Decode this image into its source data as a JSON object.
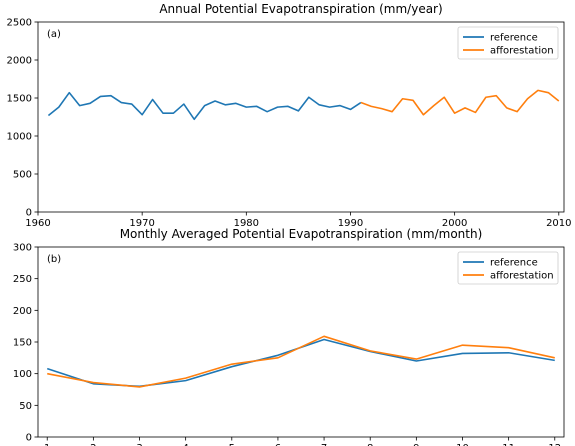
{
  "chart_data": [
    {
      "type": "line",
      "panel_label": "(a)",
      "title": "Annual Potential Evapotranspiration (mm/year)",
      "xlabel": "",
      "ylabel": "",
      "xlim": [
        1960,
        2010.5
      ],
      "ylim": [
        0,
        2500
      ],
      "xticks": [
        1960,
        1970,
        1980,
        1990,
        2000,
        2010
      ],
      "yticks": [
        0,
        500,
        1000,
        1500,
        2000,
        2500
      ],
      "legend": "top-right",
      "series": [
        {
          "name": "reference",
          "color": "#1f77b4",
          "x": [
            1961,
            1962,
            1963,
            1964,
            1965,
            1966,
            1967,
            1968,
            1969,
            1970,
            1971,
            1972,
            1973,
            1974,
            1975,
            1976,
            1977,
            1978,
            1979,
            1980,
            1981,
            1982,
            1983,
            1984,
            1985,
            1986,
            1987,
            1988,
            1989,
            1990,
            1991
          ],
          "y": [
            1270,
            1380,
            1570,
            1400,
            1430,
            1520,
            1530,
            1440,
            1420,
            1280,
            1480,
            1300,
            1300,
            1420,
            1220,
            1400,
            1460,
            1410,
            1430,
            1380,
            1390,
            1320,
            1380,
            1390,
            1330,
            1510,
            1410,
            1380,
            1400,
            1350,
            1440
          ]
        },
        {
          "name": "afforestation",
          "color": "#ff7f0e",
          "x": [
            1991,
            1992,
            1993,
            1994,
            1995,
            1996,
            1997,
            1998,
            1999,
            2000,
            2001,
            2002,
            2003,
            2004,
            2005,
            2006,
            2007,
            2008,
            2009,
            2010
          ],
          "y": [
            1440,
            1390,
            1360,
            1320,
            1490,
            1470,
            1280,
            1400,
            1510,
            1300,
            1370,
            1310,
            1510,
            1530,
            1370,
            1320,
            1490,
            1600,
            1570,
            1460
          ]
        }
      ]
    },
    {
      "type": "line",
      "panel_label": "(b)",
      "title": "Monthly Averaged Potential Evapotranspiration (mm/month)",
      "xlabel": "",
      "ylabel": "",
      "xlim": [
        0.8,
        12.2
      ],
      "ylim": [
        0,
        300
      ],
      "xticks": [
        1,
        2,
        3,
        4,
        5,
        6,
        7,
        8,
        9,
        10,
        11,
        12
      ],
      "yticks": [
        0,
        50,
        100,
        150,
        200,
        250,
        300
      ],
      "legend": "top-right",
      "series": [
        {
          "name": "reference",
          "color": "#1f77b4",
          "x": [
            1,
            2,
            3,
            4,
            5,
            6,
            7,
            8,
            9,
            10,
            11,
            12
          ],
          "y": [
            108,
            84,
            80,
            89,
            111,
            129,
            154,
            135,
            120,
            132,
            133,
            121
          ]
        },
        {
          "name": "afforestation",
          "color": "#ff7f0e",
          "x": [
            1,
            2,
            3,
            4,
            5,
            6,
            7,
            8,
            9,
            10,
            11,
            12
          ],
          "y": [
            100,
            86,
            79,
            93,
            115,
            125,
            159,
            136,
            123,
            145,
            141,
            125
          ]
        }
      ]
    }
  ]
}
